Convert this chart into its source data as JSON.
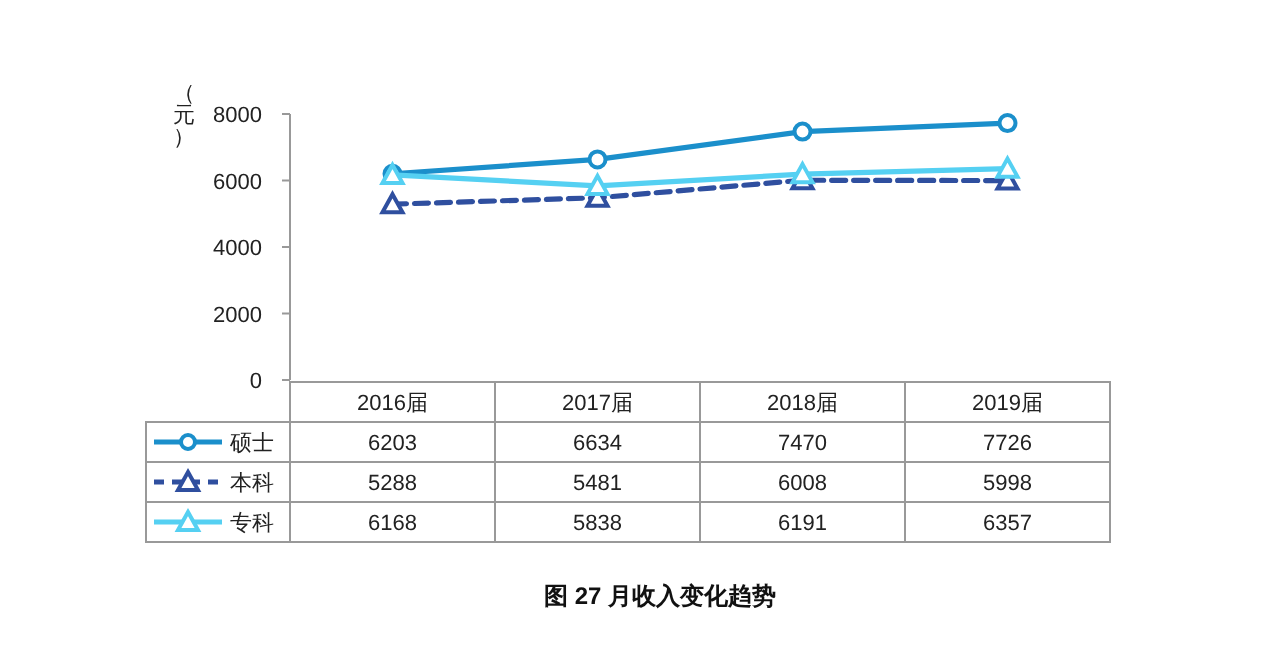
{
  "chart_data": {
    "type": "line",
    "title": "图 27  月收入变化趋势",
    "ylabel": "（元）",
    "categories": [
      "2016届",
      "2017届",
      "2018届",
      "2019届"
    ],
    "series": [
      {
        "name": "硕士",
        "color": "#1b8fcb",
        "values": [
          6203,
          6634,
          7470,
          7726
        ],
        "marker": "circle",
        "line_style": "solid"
      },
      {
        "name": "本科",
        "color": "#2f4f9f",
        "values": [
          5288,
          5481,
          6008,
          5998
        ],
        "marker": "triangle",
        "line_style": "dashed"
      },
      {
        "name": "专科",
        "color": "#55d0f2",
        "values": [
          6168,
          5838,
          6191,
          6357
        ],
        "marker": "triangle",
        "line_style": "solid"
      }
    ],
    "ylim": [
      0,
      8000
    ],
    "yticks": [
      0,
      2000,
      4000,
      6000,
      8000
    ],
    "data_labels": true,
    "legend": "bottom",
    "grid": false
  }
}
